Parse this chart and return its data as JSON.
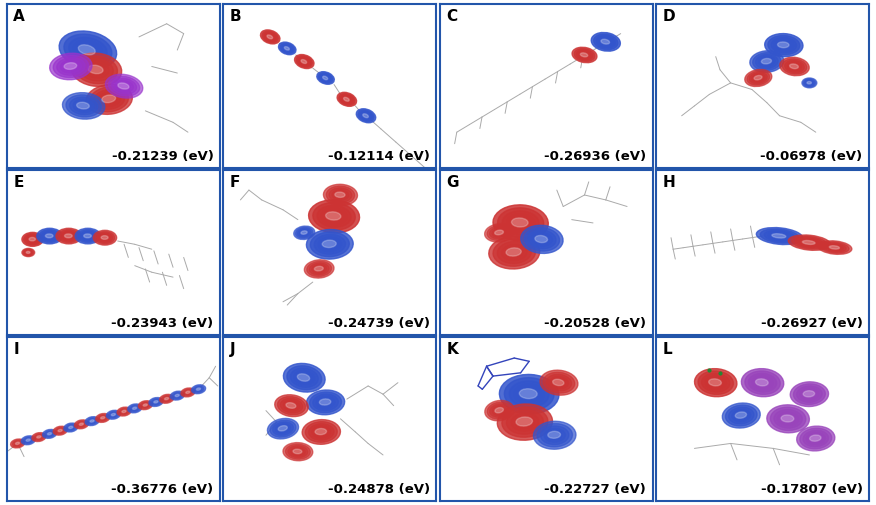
{
  "panels": [
    {
      "label": "A",
      "energy": "-0.21239 (eV)",
      "row": 0,
      "col": 0
    },
    {
      "label": "B",
      "energy": "-0.12114 (eV)",
      "row": 0,
      "col": 1
    },
    {
      "label": "C",
      "energy": "-0.26936 (eV)",
      "row": 0,
      "col": 2
    },
    {
      "label": "D",
      "energy": "-0.06978 (eV)",
      "row": 0,
      "col": 3
    },
    {
      "label": "E",
      "energy": "-0.23943 (eV)",
      "row": 1,
      "col": 0
    },
    {
      "label": "F",
      "energy": "-0.24739 (eV)",
      "row": 1,
      "col": 1
    },
    {
      "label": "G",
      "energy": "-0.20528 (eV)",
      "row": 1,
      "col": 2
    },
    {
      "label": "H",
      "energy": "-0.26927 (eV)",
      "row": 1,
      "col": 3
    },
    {
      "label": "I",
      "energy": "-0.36776 (eV)",
      "row": 2,
      "col": 0
    },
    {
      "label": "J",
      "energy": "-0.24878 (eV)",
      "row": 2,
      "col": 1
    },
    {
      "label": "K",
      "energy": "-0.22727 (eV)",
      "row": 2,
      "col": 2
    },
    {
      "label": "L",
      "energy": "-0.17807 (eV)",
      "row": 2,
      "col": 3
    }
  ],
  "n_rows": 3,
  "n_cols": 4,
  "border_color": "#2255aa",
  "bg_color": "#ffffff",
  "label_fontsize": 11,
  "energy_fontsize": 9.5,
  "label_color": "#000000",
  "energy_color": "#000000",
  "fig_bg": "#ffffff"
}
